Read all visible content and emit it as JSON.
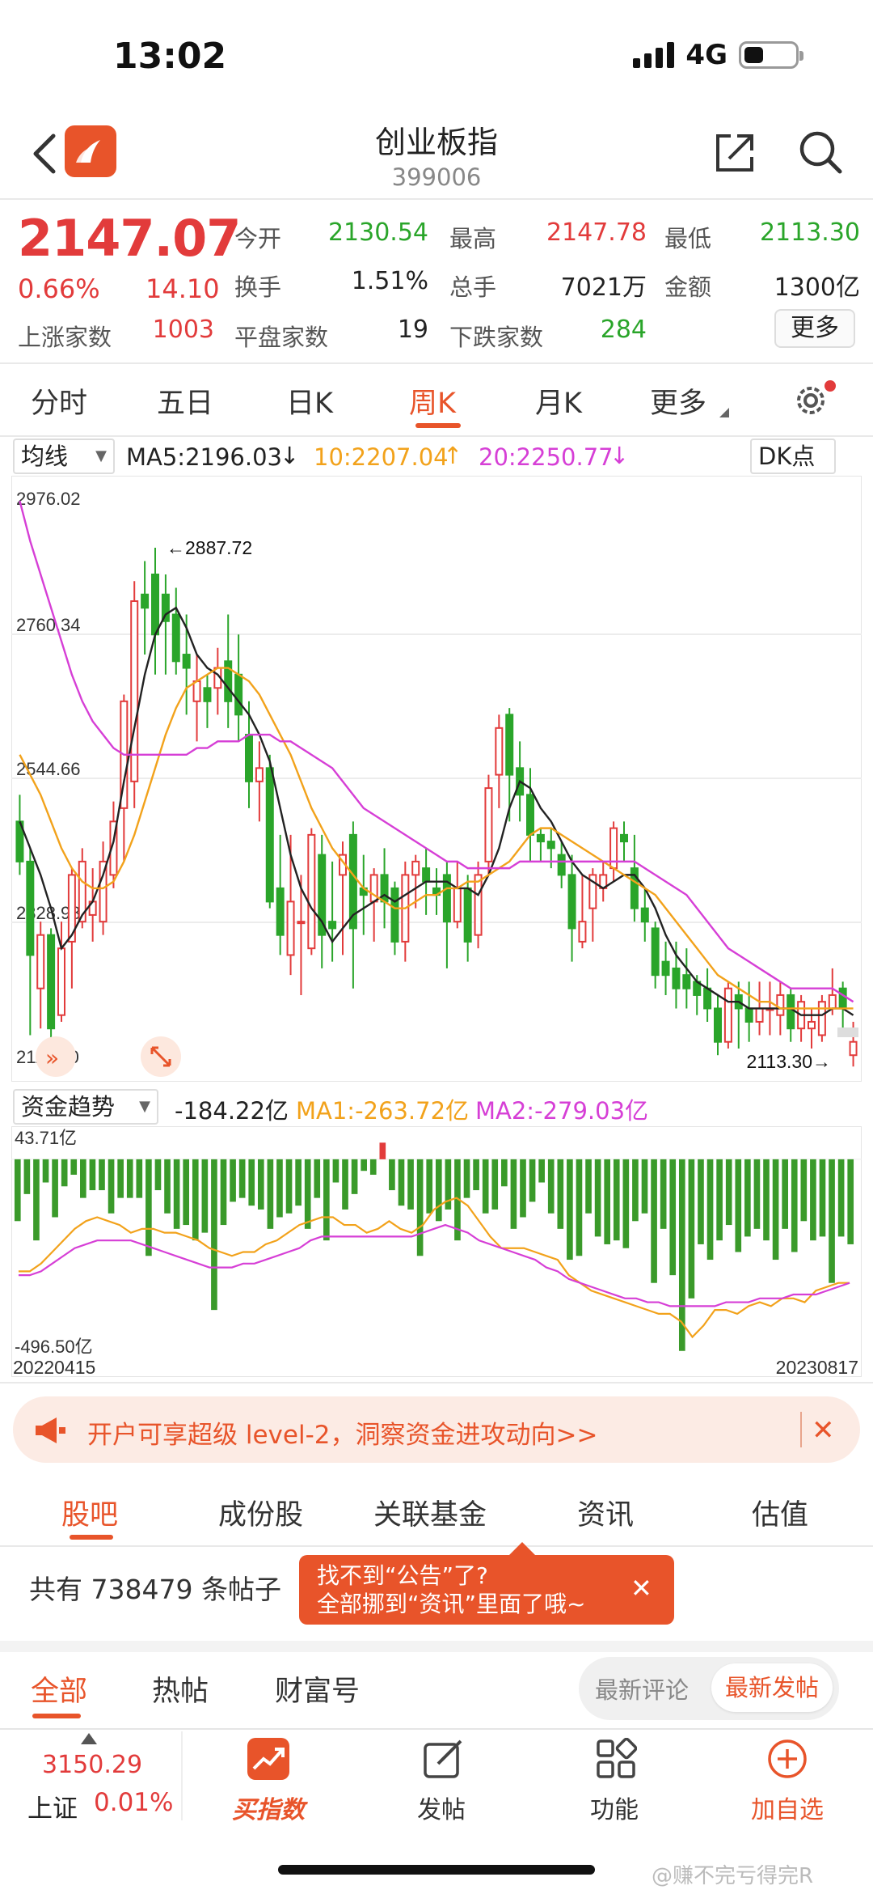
{
  "status": {
    "time": "13:02",
    "network": "4G"
  },
  "header": {
    "title": "创业板指",
    "code": "399006"
  },
  "quote": {
    "price": "2147.07",
    "pct": "0.66%",
    "change": "14.10",
    "open_label": "今开",
    "open": "2130.54",
    "high_label": "最高",
    "high": "2147.78",
    "low_label": "最低",
    "low": "2113.30",
    "turnover_label": "换手",
    "turnover": "1.51%",
    "volume_label": "总手",
    "volume": "7021万",
    "amount_label": "金额",
    "amount": "1300亿",
    "up_label": "上涨家数",
    "up": "1003",
    "flat_label": "平盘家数",
    "flat": "19",
    "down_label": "下跌家数",
    "down": "284",
    "more": "更多"
  },
  "period_tabs": [
    "分时",
    "五日",
    "日K",
    "周K",
    "月K",
    "更多"
  ],
  "ma_row": {
    "select": "均线",
    "ma5": "MA5:2196.03",
    "ma10": "10:2207.04",
    "ma20": "20:2250.77",
    "dk": "DK点"
  },
  "flow_row": {
    "select": "资金趋势",
    "value": "-184.22亿",
    "ma1": "MA1:-263.72亿",
    "ma2": "MA2:-279.03亿"
  },
  "colors": {
    "up": "#e23b3b",
    "down": "#2aa52a",
    "accent": "#e8542a",
    "ma5": "#222222",
    "ma10": "#f2a21b",
    "ma20": "#d63fd6"
  },
  "chart_data": [
    {
      "type": "candlestick",
      "y_ticks": [
        "2976.02",
        "2760.34",
        "2544.66",
        "2328.98",
        "2113.30"
      ],
      "ylim": [
        2113.3,
        2976.02
      ],
      "high_marker": "2887.72",
      "low_marker": "2113.30",
      "candles": [
        [
          2480,
          2420,
          2520,
          2400
        ],
        [
          2420,
          2280,
          2440,
          2160
        ],
        [
          2230,
          2310,
          2330,
          2170
        ],
        [
          2310,
          2170,
          2320,
          2140
        ],
        [
          2190,
          2290,
          2330,
          2180
        ],
        [
          2300,
          2400,
          2410,
          2230
        ],
        [
          2330,
          2420,
          2440,
          2320
        ],
        [
          2340,
          2360,
          2410,
          2300
        ],
        [
          2330,
          2420,
          2450,
          2310
        ],
        [
          2400,
          2480,
          2510,
          2380
        ],
        [
          2500,
          2660,
          2670,
          2420
        ],
        [
          2540,
          2810,
          2840,
          2500
        ],
        [
          2820,
          2800,
          2870,
          2730
        ],
        [
          2850,
          2760,
          2890,
          2700
        ],
        [
          2820,
          2780,
          2850,
          2700
        ],
        [
          2790,
          2720,
          2830,
          2700
        ],
        [
          2730,
          2710,
          2790,
          2640
        ],
        [
          2660,
          2690,
          2730,
          2600
        ],
        [
          2680,
          2660,
          2700,
          2620
        ],
        [
          2680,
          2710,
          2740,
          2640
        ],
        [
          2720,
          2660,
          2790,
          2620
        ],
        [
          2700,
          2640,
          2760,
          2600
        ],
        [
          2610,
          2540,
          2660,
          2500
        ],
        [
          2540,
          2560,
          2600,
          2480
        ],
        [
          2560,
          2360,
          2580,
          2350
        ],
        [
          2380,
          2310,
          2460,
          2280
        ],
        [
          2280,
          2360,
          2460,
          2250
        ],
        [
          2330,
          2330,
          2400,
          2220
        ],
        [
          2290,
          2460,
          2470,
          2280
        ],
        [
          2430,
          2310,
          2460,
          2260
        ],
        [
          2330,
          2320,
          2420,
          2270
        ],
        [
          2400,
          2430,
          2450,
          2280
        ],
        [
          2460,
          2320,
          2480,
          2230
        ],
        [
          2380,
          2370,
          2430,
          2310
        ],
        [
          2360,
          2400,
          2410,
          2300
        ],
        [
          2400,
          2360,
          2440,
          2320
        ],
        [
          2380,
          2300,
          2390,
          2280
        ],
        [
          2300,
          2400,
          2420,
          2270
        ],
        [
          2400,
          2420,
          2430,
          2350
        ],
        [
          2410,
          2390,
          2440,
          2340
        ],
        [
          2380,
          2370,
          2410,
          2340
        ],
        [
          2400,
          2330,
          2420,
          2260
        ],
        [
          2330,
          2380,
          2420,
          2320
        ],
        [
          2380,
          2300,
          2400,
          2270
        ],
        [
          2310,
          2400,
          2420,
          2290
        ],
        [
          2420,
          2530,
          2550,
          2400
        ],
        [
          2550,
          2620,
          2640,
          2500
        ],
        [
          2640,
          2550,
          2650,
          2480
        ],
        [
          2560,
          2520,
          2600,
          2480
        ],
        [
          2520,
          2460,
          2560,
          2420
        ],
        [
          2460,
          2450,
          2470,
          2420
        ],
        [
          2450,
          2440,
          2470,
          2410
        ],
        [
          2430,
          2400,
          2450,
          2380
        ],
        [
          2400,
          2320,
          2430,
          2270
        ],
        [
          2300,
          2330,
          2400,
          2290
        ],
        [
          2350,
          2400,
          2410,
          2300
        ],
        [
          2380,
          2400,
          2420,
          2360
        ],
        [
          2410,
          2470,
          2480,
          2390
        ],
        [
          2460,
          2450,
          2480,
          2420
        ],
        [
          2410,
          2350,
          2460,
          2330
        ],
        [
          2350,
          2330,
          2380,
          2300
        ],
        [
          2320,
          2250,
          2330,
          2230
        ],
        [
          2270,
          2250,
          2300,
          2220
        ],
        [
          2260,
          2230,
          2300,
          2200
        ],
        [
          2250,
          2230,
          2290,
          2200
        ],
        [
          2240,
          2220,
          2250,
          2190
        ],
        [
          2230,
          2200,
          2260,
          2180
        ],
        [
          2200,
          2150,
          2220,
          2130
        ],
        [
          2150,
          2230,
          2240,
          2140
        ],
        [
          2220,
          2200,
          2240,
          2140
        ],
        [
          2200,
          2180,
          2240,
          2150
        ],
        [
          2180,
          2200,
          2240,
          2160
        ],
        [
          2200,
          2200,
          2240,
          2160
        ],
        [
          2190,
          2220,
          2240,
          2160
        ],
        [
          2220,
          2170,
          2230,
          2150
        ],
        [
          2170,
          2210,
          2220,
          2150
        ],
        [
          2170,
          2180,
          2200,
          2140
        ],
        [
          2160,
          2210,
          2220,
          2150
        ],
        [
          2200,
          2220,
          2260,
          2190
        ],
        [
          2230,
          2200,
          2240,
          2160
        ],
        [
          2130,
          2150,
          2180,
          2113
        ]
      ],
      "ma5": [
        2480,
        2440,
        2400,
        2350,
        2290,
        2310,
        2340,
        2360,
        2400,
        2450,
        2540,
        2620,
        2700,
        2760,
        2790,
        2800,
        2770,
        2730,
        2710,
        2700,
        2680,
        2660,
        2640,
        2610,
        2570,
        2500,
        2430,
        2380,
        2350,
        2330,
        2300,
        2320,
        2340,
        2350,
        2360,
        2370,
        2360,
        2370,
        2380,
        2390,
        2390,
        2390,
        2380,
        2380,
        2370,
        2400,
        2440,
        2500,
        2540,
        2530,
        2500,
        2480,
        2450,
        2420,
        2400,
        2390,
        2380,
        2390,
        2400,
        2400,
        2380,
        2350,
        2310,
        2280,
        2260,
        2240,
        2230,
        2220,
        2210,
        2210,
        2200,
        2200,
        2200,
        2200,
        2200,
        2190,
        2190,
        2190,
        2200,
        2200,
        2190
      ],
      "ma10": [
        2580,
        2550,
        2520,
        2480,
        2440,
        2410,
        2390,
        2380,
        2380,
        2390,
        2420,
        2460,
        2510,
        2560,
        2610,
        2650,
        2680,
        2690,
        2700,
        2710,
        2710,
        2700,
        2690,
        2670,
        2640,
        2610,
        2580,
        2540,
        2500,
        2470,
        2440,
        2420,
        2400,
        2380,
        2370,
        2360,
        2350,
        2350,
        2360,
        2370,
        2370,
        2380,
        2380,
        2390,
        2390,
        2400,
        2410,
        2420,
        2440,
        2460,
        2470,
        2470,
        2460,
        2450,
        2440,
        2430,
        2420,
        2410,
        2400,
        2390,
        2380,
        2370,
        2350,
        2330,
        2310,
        2290,
        2270,
        2250,
        2240,
        2230,
        2220,
        2210,
        2210,
        2200,
        2200,
        2200,
        2200,
        2200,
        2200,
        2200,
        2200
      ],
      "ma20": [
        2960,
        2900,
        2850,
        2800,
        2750,
        2700,
        2660,
        2630,
        2610,
        2590,
        2580,
        2580,
        2580,
        2580,
        2580,
        2580,
        2580,
        2590,
        2590,
        2600,
        2600,
        2600,
        2610,
        2610,
        2610,
        2600,
        2600,
        2590,
        2580,
        2570,
        2560,
        2540,
        2520,
        2500,
        2490,
        2480,
        2470,
        2460,
        2450,
        2440,
        2430,
        2420,
        2420,
        2410,
        2410,
        2410,
        2410,
        2410,
        2420,
        2420,
        2420,
        2420,
        2420,
        2420,
        2420,
        2420,
        2420,
        2420,
        2420,
        2420,
        2410,
        2400,
        2390,
        2380,
        2370,
        2350,
        2330,
        2310,
        2290,
        2280,
        2270,
        2260,
        2250,
        2240,
        2230,
        2230,
        2230,
        2230,
        2230,
        2220,
        2210
      ]
    },
    {
      "type": "bar",
      "y_ticks": [
        "43.71亿",
        "-496.50亿"
      ],
      "ylim": [
        -496.5,
        43.71
      ],
      "x_range": [
        "20220415",
        "20230817"
      ],
      "values": [
        -160,
        -90,
        -210,
        -60,
        -150,
        -70,
        -40,
        -100,
        -80,
        -80,
        -140,
        -100,
        -100,
        -100,
        -250,
        -80,
        -140,
        -180,
        -170,
        -210,
        -190,
        -390,
        -170,
        -110,
        -100,
        -120,
        -130,
        -180,
        -150,
        -140,
        -120,
        -180,
        -100,
        -210,
        -60,
        -130,
        -90,
        -30,
        -40,
        43,
        -80,
        -120,
        -130,
        -250,
        -140,
        -160,
        -130,
        -210,
        -100,
        -80,
        -140,
        -130,
        -70,
        -180,
        -150,
        -110,
        -60,
        -140,
        -180,
        -260,
        -250,
        -140,
        -200,
        -220,
        -210,
        -230,
        -160,
        -140,
        -320,
        -180,
        -300,
        -496,
        -360,
        -220,
        -260,
        -210,
        -170,
        -240,
        -200,
        -180,
        -210,
        -260,
        -180,
        -240,
        -160,
        -210,
        -200,
        -320,
        -200,
        -220
      ],
      "ma1": [
        -290,
        -290,
        -270,
        -240,
        -210,
        -180,
        -160,
        -150,
        -160,
        -170,
        -190,
        -180,
        -180,
        -190,
        -190,
        -200,
        -210,
        -230,
        -240,
        -250,
        -240,
        -240,
        -220,
        -210,
        -190,
        -170,
        -160,
        -150,
        -150,
        -170,
        -170,
        -190,
        -180,
        -160,
        -180,
        -190,
        -170,
        -130,
        -110,
        -100,
        -120,
        -160,
        -200,
        -230,
        -230,
        -230,
        -240,
        -250,
        -260,
        -300,
        -320,
        -340,
        -350,
        -360,
        -370,
        -380,
        -390,
        -400,
        -400,
        -420,
        -460,
        -430,
        -390,
        -390,
        -400,
        -380,
        -370,
        -380,
        -360,
        -360,
        -370,
        -340,
        -330,
        -320,
        -320
      ],
      "ma2": [
        -300,
        -300,
        -290,
        -270,
        -250,
        -230,
        -220,
        -210,
        -210,
        -210,
        -210,
        -220,
        -230,
        -240,
        -250,
        -260,
        -270,
        -280,
        -280,
        -280,
        -270,
        -270,
        -260,
        -250,
        -240,
        -230,
        -210,
        -200,
        -200,
        -200,
        -200,
        -200,
        -200,
        -200,
        -200,
        -200,
        -190,
        -180,
        -170,
        -180,
        -190,
        -210,
        -220,
        -230,
        -240,
        -250,
        -260,
        -280,
        -290,
        -310,
        -320,
        -330,
        -340,
        -350,
        -360,
        -360,
        -370,
        -370,
        -380,
        -380,
        -380,
        -380,
        -380,
        -370,
        -370,
        -370,
        -360,
        -360,
        -360,
        -350,
        -350,
        -350,
        -340,
        -330,
        -320
      ]
    }
  ],
  "banner": {
    "text": "开户可享超级 level-2，洞察资金进攻动向>>",
    "close": "✕"
  },
  "section_tabs": [
    "股吧",
    "成份股",
    "关联基金",
    "资讯",
    "估值"
  ],
  "posts": {
    "count_text": "共有 738479 条帖子"
  },
  "tooltip": {
    "line1": "找不到“公告”了?",
    "line2": "全部挪到“资讯”里面了哦~",
    "close": "✕"
  },
  "feed_tabs": [
    "全部",
    "热帖",
    "财富号"
  ],
  "sort": {
    "latest_comment": "最新评论",
    "latest_post": "最新发帖"
  },
  "bottom_nav": {
    "index_value": "3150.29",
    "index_name": "上证",
    "index_pct": "0.01%",
    "buy_index": "买指数",
    "post": "发帖",
    "functions": "功能",
    "add_fav": "加自选"
  },
  "watermark": "@赚不完亏得完R"
}
